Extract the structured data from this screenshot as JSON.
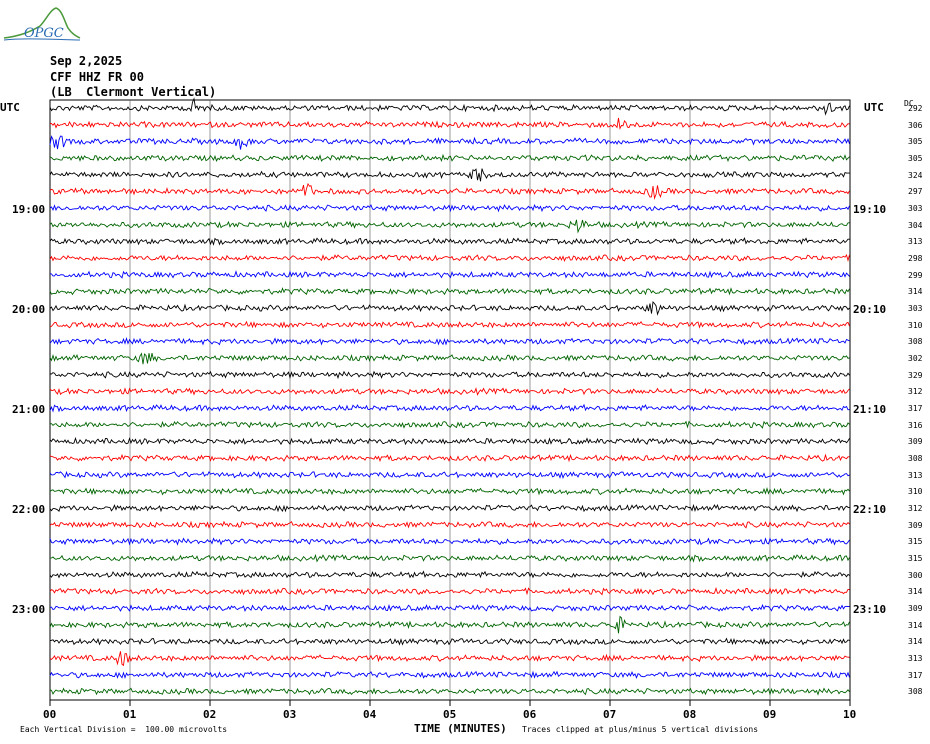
{
  "logo": {
    "text": "OPGC",
    "icon": "volcano-logo-icon",
    "color": "#2a6bb3"
  },
  "header": {
    "date": "Sep 2,2025",
    "station": "CFF HHZ FR 00",
    "location": "(LB  Clermont Vertical)"
  },
  "utc_left": "UTC",
  "utc_right": "UTC",
  "dc_label": "DC",
  "left_time_labels": [
    "19:00",
    "20:00",
    "21:00",
    "22:00",
    "23:00"
  ],
  "right_time_labels": [
    "19:10",
    "20:10",
    "21:10",
    "22:10",
    "23:10"
  ],
  "footer": {
    "xlabel": "TIME (MINUTES)",
    "scale_note": "Each Vertical Division =  100.00 microvolts",
    "clip_note": "Traces clipped at plus/minus 5 vertical divisions"
  },
  "chart_data": {
    "type": "line",
    "title": "",
    "xlabel": "TIME (MINUTES)",
    "x_ticks": [
      "00",
      "01",
      "02",
      "03",
      "04",
      "05",
      "06",
      "07",
      "08",
      "09",
      "10"
    ],
    "xlim": [
      0,
      10
    ],
    "grid": true,
    "trace_colors": [
      "#000000",
      "#ff0000",
      "#0000ff",
      "#006400"
    ],
    "trace_dc_offsets": [
      292,
      306,
      305,
      305,
      324,
      297,
      303,
      304,
      313,
      298,
      299,
      314,
      303,
      310,
      308,
      302,
      329,
      312,
      317,
      316,
      309,
      308,
      313,
      310,
      312,
      309,
      315,
      315,
      300,
      314,
      309,
      314,
      314,
      313,
      317,
      308
    ],
    "events": [
      {
        "trace": 0,
        "minute": 1.8
      },
      {
        "trace": 0,
        "minute": 9.7
      },
      {
        "trace": 1,
        "minute": 7.15
      },
      {
        "trace": 2,
        "minute": 0.1
      },
      {
        "trace": 2,
        "minute": 2.4
      },
      {
        "trace": 4,
        "minute": 5.35
      },
      {
        "trace": 5,
        "minute": 3.2
      },
      {
        "trace": 5,
        "minute": 7.55
      },
      {
        "trace": 7,
        "minute": 6.6
      },
      {
        "trace": 12,
        "minute": 7.55
      },
      {
        "trace": 15,
        "minute": 1.2
      },
      {
        "trace": 31,
        "minute": 7.1
      },
      {
        "trace": 33,
        "minute": 0.9
      }
    ]
  }
}
